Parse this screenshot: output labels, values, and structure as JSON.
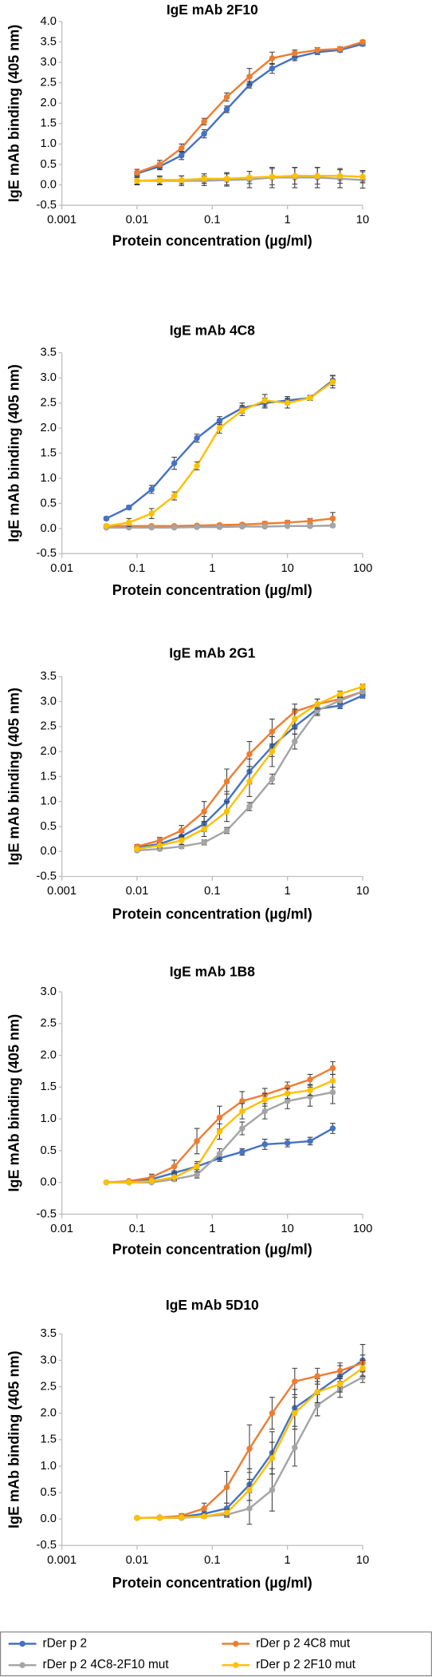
{
  "chart_data": [
    {
      "type": "line",
      "title": "IgE mAb 2F10",
      "x_label": "Protein concentration (µg/ml)",
      "y_label": "IgE mAb binding (405 nm)",
      "log_x": true,
      "x": [
        0.01,
        0.02,
        0.039,
        0.078,
        0.156,
        0.3125,
        0.625,
        1.25,
        2.5,
        5,
        10
      ],
      "xlim": [
        0.001,
        10
      ],
      "xticks": [
        0.001,
        0.01,
        0.1,
        1,
        10
      ],
      "ylim": [
        -0.5,
        4
      ],
      "yticks": [
        -0.5,
        {
          "value": 0,
          "label": "0.0"
        },
        0.5,
        {
          "value": 1,
          "label": "1.0"
        },
        1.5,
        {
          "value": 2,
          "label": "2.0"
        },
        2.5,
        {
          "value": 3,
          "label": "3.0"
        },
        3.5,
        {
          "value": 4,
          "label": "4.0"
        }
      ],
      "series": [
        {
          "name": "rDer p 2",
          "color": "#4472c4",
          "values": [
            0.28,
            0.45,
            0.72,
            1.25,
            1.85,
            2.45,
            2.85,
            3.12,
            3.25,
            3.3,
            3.45
          ],
          "errors": [
            0.05,
            0.08,
            0.1,
            0.1,
            0.08,
            0.08,
            0.12,
            0.08,
            0.06,
            0.05,
            0.05
          ]
        },
        {
          "name": "rDer p 2 4C8 mut",
          "color": "#ed7d31",
          "values": [
            0.3,
            0.5,
            0.9,
            1.55,
            2.15,
            2.65,
            3.1,
            3.22,
            3.3,
            3.33,
            3.5
          ],
          "errors": [
            0.08,
            0.1,
            0.1,
            0.08,
            0.1,
            0.2,
            0.15,
            0.08,
            0.06,
            0.05,
            0.04
          ]
        },
        {
          "name": "rDer p 2 4C8-2F10 mut",
          "color": "#a5a5a5",
          "values": [
            0.1,
            0.1,
            0.1,
            0.1,
            0.12,
            0.13,
            0.18,
            0.18,
            0.18,
            0.15,
            0.12
          ],
          "errors": [
            0.1,
            0.1,
            0.12,
            0.12,
            0.15,
            0.2,
            0.25,
            0.25,
            0.25,
            0.22,
            0.2
          ]
        },
        {
          "name": "rDer p 2 2F10 mut",
          "color": "#ffc000",
          "values": [
            0.1,
            0.12,
            0.12,
            0.15,
            0.15,
            0.18,
            0.2,
            0.22,
            0.22,
            0.22,
            0.2
          ],
          "errors": [
            0.08,
            0.1,
            0.1,
            0.12,
            0.15,
            0.15,
            0.2,
            0.2,
            0.2,
            0.18,
            0.15
          ]
        }
      ]
    },
    {
      "type": "line",
      "title": "IgE mAb 4C8",
      "x_label": "Protein concentration (µg/ml)",
      "y_label": "IgE mAb binding (405 nm)",
      "log_x": true,
      "x": [
        0.039,
        0.078,
        0.156,
        0.3125,
        0.625,
        1.25,
        2.5,
        5,
        10,
        20,
        40
      ],
      "xlim": [
        0.01,
        100
      ],
      "xticks": [
        0.01,
        0.1,
        1,
        10,
        100
      ],
      "ylim": [
        -0.5,
        3.5
      ],
      "yticks": [
        -0.5,
        {
          "value": 0,
          "label": "0.0"
        },
        0.5,
        {
          "value": 1,
          "label": "1.0"
        },
        1.5,
        {
          "value": 2,
          "label": "2.0"
        },
        2.5,
        {
          "value": 3,
          "label": "3.0"
        },
        3.5
      ],
      "series": [
        {
          "name": "rDer p 2",
          "color": "#4472c4",
          "values": [
            0.2,
            0.42,
            0.78,
            1.3,
            1.8,
            2.15,
            2.4,
            2.5,
            2.55,
            2.6,
            2.95
          ],
          "errors": [
            0.03,
            0.04,
            0.08,
            0.12,
            0.08,
            0.08,
            0.1,
            0.1,
            0.08,
            0.05,
            0.1
          ]
        },
        {
          "name": "rDer p 2 4C8 mut",
          "color": "#ed7d31",
          "values": [
            0.05,
            0.05,
            0.05,
            0.05,
            0.06,
            0.07,
            0.08,
            0.1,
            0.12,
            0.15,
            0.2
          ],
          "errors": [
            0.02,
            0.02,
            0.02,
            0.02,
            0.02,
            0.03,
            0.03,
            0.04,
            0.04,
            0.05,
            0.12
          ]
        },
        {
          "name": "rDer p 2 4C8-2F10 mut",
          "color": "#a5a5a5",
          "values": [
            0.02,
            0.02,
            0.02,
            0.02,
            0.03,
            0.03,
            0.04,
            0.04,
            0.05,
            0.05,
            0.06
          ],
          "errors": [
            0.02,
            0.02,
            0.02,
            0.02,
            0.02,
            0.02,
            0.02,
            0.02,
            0.02,
            0.03,
            0.03
          ]
        },
        {
          "name": "rDer p 2 2F10 mut",
          "color": "#ffc000",
          "values": [
            0.05,
            0.12,
            0.3,
            0.65,
            1.25,
            2.0,
            2.35,
            2.55,
            2.5,
            2.6,
            2.92
          ],
          "errors": [
            0.03,
            0.08,
            0.1,
            0.08,
            0.08,
            0.1,
            0.1,
            0.12,
            0.1,
            0.05,
            0.12
          ]
        }
      ]
    },
    {
      "type": "line",
      "title": "IgE mAb 2G1",
      "x_label": "Protein concentration (µg/ml)",
      "y_label": "IgE mAb binding (405 nm)",
      "log_x": true,
      "x": [
        0.01,
        0.02,
        0.039,
        0.078,
        0.156,
        0.3125,
        0.625,
        1.25,
        2.5,
        5,
        10
      ],
      "xlim": [
        0.001,
        10
      ],
      "xticks": [
        0.001,
        0.01,
        0.1,
        1,
        10
      ],
      "ylim": [
        -0.5,
        3.5
      ],
      "yticks": [
        -0.5,
        {
          "value": 0,
          "label": "0.0"
        },
        0.5,
        {
          "value": 1,
          "label": "1.0"
        },
        1.5,
        {
          "value": 2,
          "label": "2.0"
        },
        2.5,
        {
          "value": 3,
          "label": "3.0"
        },
        3.5
      ],
      "series": [
        {
          "name": "rDer p 2",
          "color": "#4472c4",
          "values": [
            0.08,
            0.15,
            0.3,
            0.55,
            1.0,
            1.6,
            2.1,
            2.5,
            2.85,
            2.92,
            3.12
          ],
          "errors": [
            0.03,
            0.05,
            0.08,
            0.15,
            0.2,
            0.25,
            0.2,
            0.15,
            0.1,
            0.06,
            0.05
          ]
        },
        {
          "name": "rDer p 2 4C8 mut",
          "color": "#ed7d31",
          "values": [
            0.1,
            0.22,
            0.42,
            0.8,
            1.4,
            1.95,
            2.4,
            2.8,
            2.95,
            3.05,
            3.2
          ],
          "errors": [
            0.04,
            0.06,
            0.1,
            0.2,
            0.25,
            0.25,
            0.25,
            0.15,
            0.1,
            0.06,
            0.05
          ]
        },
        {
          "name": "rDer p 2 4C8-2F10 mut",
          "color": "#a5a5a5",
          "values": [
            0.02,
            0.05,
            0.1,
            0.18,
            0.42,
            0.9,
            1.45,
            2.2,
            2.82,
            3.02,
            3.2
          ],
          "errors": [
            0.02,
            0.03,
            0.04,
            0.05,
            0.06,
            0.08,
            0.1,
            0.15,
            0.1,
            0.06,
            0.05
          ]
        },
        {
          "name": "rDer p 2 2F10 mut",
          "color": "#ffc000",
          "values": [
            0.05,
            0.12,
            0.22,
            0.45,
            0.8,
            1.4,
            2.0,
            2.65,
            2.95,
            3.15,
            3.3
          ],
          "errors": [
            0.03,
            0.05,
            0.08,
            0.15,
            0.2,
            0.3,
            0.3,
            0.2,
            0.1,
            0.06,
            0.05
          ]
        }
      ]
    },
    {
      "type": "line",
      "title": "IgE mAb 1B8",
      "x_label": "Protein concentration (µg/ml)",
      "y_label": "IgE mAb binding (405 nm)",
      "log_x": true,
      "x": [
        0.039,
        0.078,
        0.156,
        0.3125,
        0.625,
        1.25,
        2.5,
        5,
        10,
        20,
        40
      ],
      "xlim": [
        0.01,
        100
      ],
      "xticks": [
        0.01,
        0.1,
        1,
        10,
        100
      ],
      "ylim": [
        -0.5,
        3
      ],
      "yticks": [
        -0.5,
        {
          "value": 0,
          "label": "0.0"
        },
        0.5,
        {
          "value": 1,
          "label": "1.0"
        },
        1.5,
        {
          "value": 2,
          "label": "2.0"
        },
        2.5,
        {
          "value": 3,
          "label": "3.0"
        }
      ],
      "series": [
        {
          "name": "rDer p 2",
          "color": "#4472c4",
          "values": [
            0,
            0,
            0.05,
            0.15,
            0.25,
            0.38,
            0.48,
            0.6,
            0.62,
            0.65,
            0.85
          ],
          "errors": [
            0.01,
            0.01,
            0.02,
            0.03,
            0.05,
            0.05,
            0.05,
            0.08,
            0.06,
            0.06,
            0.08
          ]
        },
        {
          "name": "rDer p 2 4C8 mut",
          "color": "#ed7d31",
          "values": [
            0,
            0.02,
            0.08,
            0.25,
            0.65,
            1.02,
            1.28,
            1.38,
            1.5,
            1.62,
            1.8
          ],
          "errors": [
            0.01,
            0.02,
            0.05,
            0.1,
            0.2,
            0.18,
            0.15,
            0.1,
            0.08,
            0.08,
            0.1
          ]
        },
        {
          "name": "rDer p 2 4C8-2F10 mut",
          "color": "#a5a5a5",
          "values": [
            0,
            0,
            0,
            0.05,
            0.12,
            0.45,
            0.85,
            1.12,
            1.28,
            1.35,
            1.42
          ],
          "errors": [
            0.01,
            0.01,
            0.01,
            0.03,
            0.05,
            0.08,
            0.1,
            0.12,
            0.12,
            0.15,
            0.18
          ]
        },
        {
          "name": "rDer p 2 2F10 mut",
          "color": "#ffc000",
          "values": [
            0,
            0,
            0.02,
            0.08,
            0.25,
            0.8,
            1.12,
            1.3,
            1.4,
            1.45,
            1.6
          ],
          "errors": [
            0.01,
            0.01,
            0.02,
            0.04,
            0.08,
            0.12,
            0.12,
            0.1,
            0.08,
            0.08,
            0.1
          ]
        }
      ]
    },
    {
      "type": "line",
      "title": "IgE mAb 5D10",
      "x_label": "Protein concentration (µg/ml)",
      "y_label": "IgE mAb binding (405 nm)",
      "log_x": true,
      "x": [
        0.01,
        0.02,
        0.039,
        0.078,
        0.156,
        0.3125,
        0.625,
        1.25,
        2.5,
        5,
        10
      ],
      "xlim": [
        0.001,
        10
      ],
      "xticks": [
        0.001,
        0.01,
        0.1,
        1,
        10
      ],
      "ylim": [
        -0.5,
        3.5
      ],
      "yticks": [
        -0.5,
        {
          "value": 0,
          "label": "0.0"
        },
        0.5,
        {
          "value": 1,
          "label": "1.0"
        },
        1.5,
        {
          "value": 2,
          "label": "2.0"
        },
        2.5,
        {
          "value": 3,
          "label": "3.0"
        },
        3.5
      ],
      "series": [
        {
          "name": "rDer p 2",
          "color": "#4472c4",
          "values": [
            0.02,
            0.02,
            0.04,
            0.1,
            0.2,
            0.65,
            1.25,
            2.1,
            2.4,
            2.7,
            3.0
          ],
          "errors": [
            0.01,
            0.01,
            0.02,
            0.05,
            0.1,
            0.3,
            0.4,
            0.35,
            0.25,
            0.2,
            0.3
          ]
        },
        {
          "name": "rDer p 2 4C8 mut",
          "color": "#ed7d31",
          "values": [
            0.02,
            0.03,
            0.06,
            0.2,
            0.6,
            1.33,
            2.0,
            2.6,
            2.7,
            2.8,
            2.95
          ],
          "errors": [
            0.01,
            0.02,
            0.04,
            0.1,
            0.3,
            0.45,
            0.3,
            0.25,
            0.15,
            0.15,
            0.15
          ]
        },
        {
          "name": "rDer p 2 4C8-2F10 mut",
          "color": "#a5a5a5",
          "values": [
            0.02,
            0.02,
            0.02,
            0.05,
            0.08,
            0.2,
            0.55,
            1.35,
            2.15,
            2.45,
            2.68
          ],
          "errors": [
            0.01,
            0.01,
            0.01,
            0.03,
            0.05,
            0.3,
            0.4,
            0.35,
            0.2,
            0.15,
            0.1
          ]
        },
        {
          "name": "rDer p 2 2F10 mut",
          "color": "#ffc000",
          "values": [
            0.02,
            0.02,
            0.03,
            0.05,
            0.12,
            0.55,
            1.15,
            2.0,
            2.4,
            2.55,
            2.85
          ],
          "errors": [
            0.01,
            0.01,
            0.02,
            0.03,
            0.06,
            0.2,
            0.3,
            0.3,
            0.2,
            0.15,
            0.15
          ]
        }
      ]
    }
  ],
  "legend": {
    "position": "bottom"
  }
}
